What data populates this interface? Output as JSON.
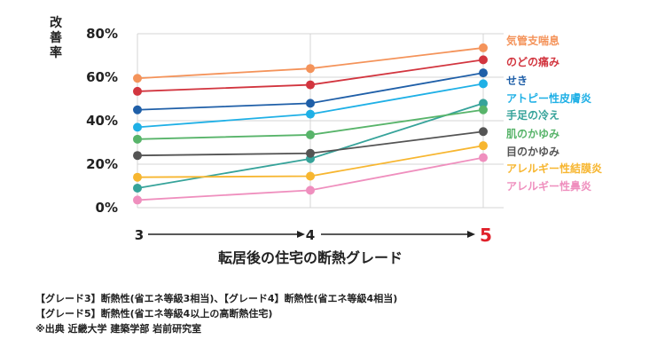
{
  "chart_data": {
    "type": "line",
    "x": [
      3,
      4,
      5
    ],
    "x_tick_labels": [
      "3",
      "4",
      "5"
    ],
    "xlabel": "転居後の住宅の断熱グレード",
    "ylabel": "改善率",
    "ylim": [
      0,
      80
    ],
    "y_ticks": [
      0,
      20,
      40,
      60,
      80
    ],
    "y_tick_labels": [
      "0%",
      "20%",
      "40%",
      "60%",
      "80%"
    ],
    "grid": true,
    "legend_position": "right",
    "highlight_color": "#e0202a",
    "series": [
      {
        "name": "気管支喘息",
        "values": [
          59.5,
          64,
          73.5
        ],
        "color": "#f4935a"
      },
      {
        "name": "のどの痛み",
        "values": [
          53.5,
          56.5,
          68
        ],
        "color": "#d2353f"
      },
      {
        "name": "せき",
        "values": [
          45,
          48,
          62
        ],
        "color": "#1f5fa8"
      },
      {
        "name": "アトピー性皮膚炎",
        "values": [
          37,
          43,
          57
        ],
        "color": "#1fb0e6"
      },
      {
        "name": "手足の冷え",
        "values": [
          9,
          22.5,
          48
        ],
        "color": "#36a39a"
      },
      {
        "name": "肌のかゆみ",
        "values": [
          31.5,
          33.5,
          45
        ],
        "color": "#58b46a"
      },
      {
        "name": "目のかゆみ",
        "values": [
          24,
          25,
          35
        ],
        "color": "#545454"
      },
      {
        "name": "アレルギー性結膜炎",
        "values": [
          14,
          14.5,
          28.5
        ],
        "color": "#f7b630"
      },
      {
        "name": "アレルギー性鼻炎",
        "values": [
          3.5,
          8,
          23
        ],
        "color": "#ef8fbe"
      }
    ]
  },
  "notes": [
    "【グレード3】断熱性(省エネ等級3相当)、【グレード4】断熱性(省エネ等級4相当)",
    "【グレード5】断熱性(省エネ等級4以上の高断熱住宅)",
    "※出典 近畿大学 建築学部 岩前研究室"
  ]
}
